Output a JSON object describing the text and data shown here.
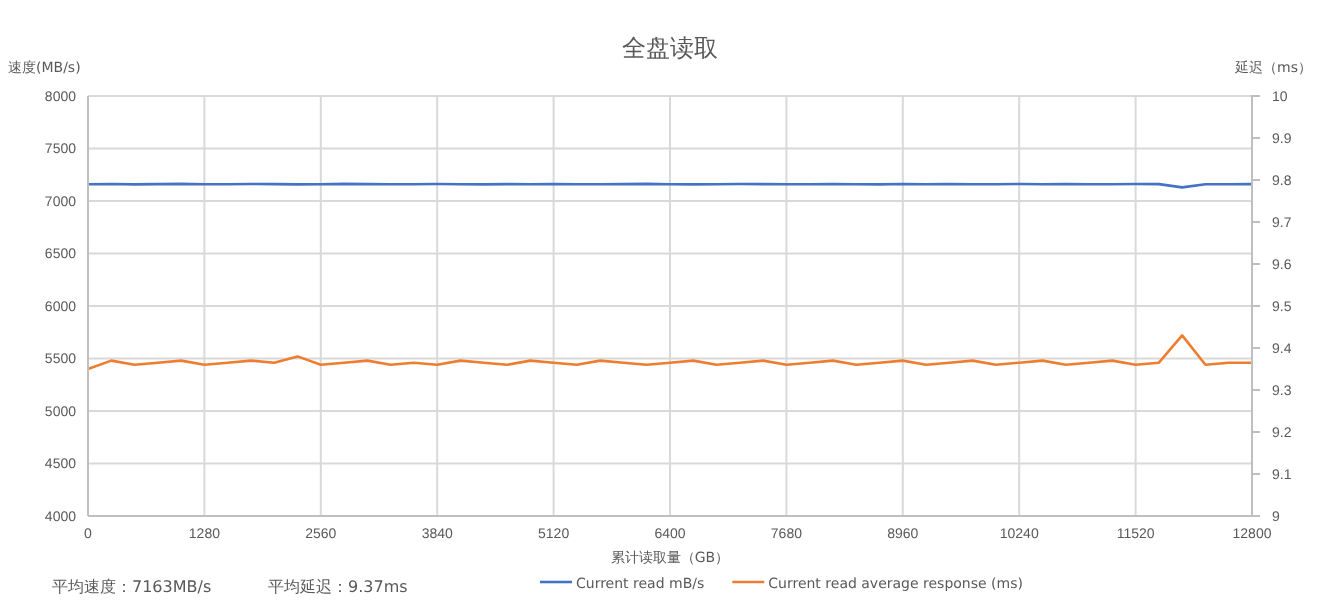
{
  "chart_data": {
    "type": "line",
    "title": "全盘读取",
    "xlabel": "累计读取量（GB）",
    "ylabel": "速度(MB/s)",
    "y2label": "延迟（ms）",
    "annotations": [
      "平均速度：7163MB/s",
      "平均延迟：9.37ms"
    ],
    "x": [
      0,
      256,
      512,
      768,
      1024,
      1280,
      1536,
      1792,
      2048,
      2304,
      2560,
      2816,
      3072,
      3328,
      3584,
      3840,
      4096,
      4352,
      4608,
      4864,
      5120,
      5376,
      5632,
      5888,
      6144,
      6400,
      6656,
      6912,
      7168,
      7424,
      7680,
      7936,
      8192,
      8448,
      8704,
      8960,
      9216,
      9472,
      9728,
      9984,
      10240,
      10496,
      10752,
      11008,
      11264,
      11520,
      11776,
      12032,
      12288,
      12544,
      12800
    ],
    "series": [
      {
        "name": "Current read mB/s",
        "color": "#4472c4",
        "values": [
          7160,
          7162,
          7158,
          7161,
          7163,
          7159,
          7160,
          7162,
          7161,
          7158,
          7160,
          7163,
          7161,
          7159,
          7160,
          7162,
          7160,
          7158,
          7161,
          7160,
          7162,
          7159,
          7160,
          7161,
          7163,
          7160,
          7158,
          7160,
          7162,
          7161,
          7159,
          7160,
          7161,
          7160,
          7158,
          7162,
          7160,
          7161,
          7159,
          7160,
          7162,
          7160,
          7161,
          7159,
          7160,
          7162,
          7161,
          7130,
          7159,
          7160,
          7161
        ]
      },
      {
        "name": "Current read average response (ms)",
        "color": "#ed7d31",
        "axis": "y2",
        "values": [
          9.35,
          9.37,
          9.36,
          9.365,
          9.37,
          9.36,
          9.365,
          9.37,
          9.365,
          9.38,
          9.36,
          9.365,
          9.37,
          9.36,
          9.365,
          9.36,
          9.37,
          9.365,
          9.36,
          9.37,
          9.365,
          9.36,
          9.37,
          9.365,
          9.36,
          9.365,
          9.37,
          9.36,
          9.365,
          9.37,
          9.36,
          9.365,
          9.37,
          9.36,
          9.365,
          9.37,
          9.36,
          9.365,
          9.37,
          9.36,
          9.365,
          9.37,
          9.36,
          9.365,
          9.37,
          9.36,
          9.365,
          9.43,
          9.36,
          9.365,
          9.365
        ]
      }
    ],
    "xlim": [
      0,
      12800
    ],
    "xticks": [
      0,
      1280,
      2560,
      3840,
      5120,
      6400,
      7680,
      8960,
      10240,
      11520,
      12800
    ],
    "ylim": [
      4000,
      8000
    ],
    "yticks": [
      4000,
      4500,
      5000,
      5500,
      6000,
      6500,
      7000,
      7500,
      8000
    ],
    "y2lim": [
      9,
      10
    ],
    "y2ticks": [
      9,
      9.1,
      9.2,
      9.3,
      9.4,
      9.5,
      9.6,
      9.7,
      9.8,
      9.9,
      10
    ],
    "grid": true,
    "legend": "bottom",
    "marker": "none",
    "line_style": "solid"
  }
}
